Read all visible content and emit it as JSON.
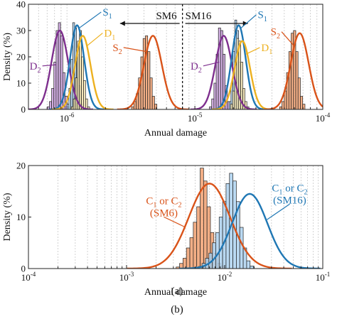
{
  "figure": {
    "panel_labels": [
      "(a)",
      "(b)"
    ]
  },
  "chart_data": [
    {
      "type": "bar",
      "panel": "(a)",
      "xlabel": "Annual damage",
      "ylabel": "Density (%)",
      "xscale": "log",
      "xlim": [
        5e-07,
        0.0001
      ],
      "ylim": [
        0,
        40
      ],
      "yticks": [
        0,
        10,
        20,
        30,
        40
      ],
      "xticks": [
        {
          "value": 1e-06,
          "base": "10",
          "exp": "-6"
        },
        {
          "value": 1e-05,
          "base": "10",
          "exp": "-5"
        },
        {
          "value": 0.0001,
          "base": "10",
          "exp": "-4"
        }
      ],
      "grid": "minor-vertical",
      "divider": {
        "x": 8e-06,
        "left_label": "SM6",
        "right_label": "SM16"
      },
      "colors": {
        "S1": "#1f77b4",
        "D1": "#edb120",
        "D2": "#7e2f8e",
        "S2": "#d95319",
        "S1_fill": "#aed2f0",
        "D1_fill": "#f5e4b0",
        "D2_fill": "#c9a0dc",
        "S2_fill": "#f0a071"
      },
      "series": [
        {
          "id": "D2",
          "label_main": "D",
          "label_sub": "2",
          "curve": {
            "mu": 8.8e-07,
            "sigma": 0.065,
            "peak": 30
          },
          "bins": {
            "start": 7e-07,
            "width": 0.0175,
            "values": [
              1,
              3,
              8,
              18,
              30,
              33,
              28,
              14,
              5,
              1
            ]
          }
        },
        {
          "id": "S1",
          "label_main": "S",
          "label_sub": "1",
          "curve": {
            "mu": 1.2e-06,
            "sigma": 0.055,
            "peak": 32
          },
          "bins": {
            "start": 1e-06,
            "width": 0.015,
            "values": [
              2,
              8,
              19,
              33,
              31,
              21,
              9,
              2
            ]
          }
        },
        {
          "id": "D1",
          "label_main": "D",
          "label_sub": "1",
          "curve": {
            "mu": 1.33e-06,
            "sigma": 0.06,
            "peak": 28
          },
          "bins": {
            "start": 1.08e-06,
            "width": 0.016,
            "values": [
              1,
              4,
              12,
              26,
              30,
              20,
              11,
              4,
              1
            ]
          }
        },
        {
          "id": "S2",
          "label_main": "S",
          "label_sub": "2",
          "curve": {
            "mu": 4.7e-06,
            "sigma": 0.07,
            "peak": 28
          },
          "bins": {
            "start": 3.2e-06,
            "width": 0.018,
            "values": [
              1,
              3,
              6,
              12,
              20,
              27,
              28,
              22,
              12,
              5,
              2
            ]
          }
        },
        {
          "id": "D2",
          "label_main": "D",
          "label_sub": "2",
          "curve": {
            "mu": 1.68e-05,
            "sigma": 0.065,
            "peak": 28
          },
          "bins": {
            "start": 1.3e-05,
            "width": 0.0175,
            "values": [
              1,
              4,
              10,
              21,
              31,
              30,
              21,
              9,
              3
            ]
          }
        },
        {
          "id": "S1",
          "label_main": "S",
          "label_sub": "1",
          "curve": {
            "mu": 2.2e-05,
            "sigma": 0.055,
            "peak": 32
          },
          "bins": {
            "start": 1.85e-05,
            "width": 0.015,
            "values": [
              3,
              10,
              22,
              34,
              30,
              18,
              7,
              2
            ]
          }
        },
        {
          "id": "D1",
          "label_main": "D",
          "label_sub": "1",
          "curve": {
            "mu": 2.35e-05,
            "sigma": 0.06,
            "peak": 26
          },
          "bins": {
            "start": 1.9e-05,
            "width": 0.016,
            "values": [
              2,
              7,
              17,
              27,
              26,
              18,
              8,
              3,
              1
            ]
          }
        },
        {
          "id": "S2",
          "label_main": "S",
          "label_sub": "2",
          "curve": {
            "mu": 6.6e-05,
            "sigma": 0.07,
            "peak": 29
          },
          "bins": {
            "start": 4.6e-05,
            "width": 0.018,
            "values": [
              1,
              3,
              7,
              14,
              22,
              29,
              30,
              22,
              12,
              5,
              2
            ]
          }
        }
      ],
      "labels": [
        {
          "for": 1,
          "text_main": "S",
          "text_sub": "1",
          "color": "#1f77b4",
          "anchor_x": 1.25e-06,
          "anchor_y": 31,
          "text_x": 1.9e-06,
          "text_y": 36.5
        },
        {
          "for": 2,
          "text_main": "D",
          "text_sub": "1",
          "color": "#edb120",
          "anchor_x": 1.42e-06,
          "anchor_y": 24,
          "text_x": 1.95e-06,
          "text_y": 28.5
        },
        {
          "for": 0,
          "text_main": "D",
          "text_sub": "2",
          "color": "#7e2f8e",
          "anchor_x": 8.2e-07,
          "anchor_y": 17,
          "text_x": 5.8e-07,
          "text_y": 16
        },
        {
          "for": 3,
          "text_main": "S",
          "text_sub": "2",
          "color": "#d95319",
          "anchor_x": 4.2e-06,
          "anchor_y": 22,
          "text_x": 2.5e-06,
          "text_y": 23
        },
        {
          "for": 5,
          "text_main": "S",
          "text_sub": "1",
          "color": "#1f77b4",
          "anchor_x": 2.3e-05,
          "anchor_y": 31,
          "text_x": 3.1e-05,
          "text_y": 35.5
        },
        {
          "for": 6,
          "text_main": "D",
          "text_sub": "1",
          "color": "#edb120",
          "anchor_x": 2.5e-05,
          "anchor_y": 21,
          "text_x": 3.3e-05,
          "text_y": 23
        },
        {
          "for": 4,
          "text_main": "D",
          "text_sub": "2",
          "color": "#7e2f8e",
          "anchor_x": 1.55e-05,
          "anchor_y": 18,
          "text_x": 1.05e-05,
          "text_y": 16
        },
        {
          "for": 7,
          "text_main": "S",
          "text_sub": "2",
          "color": "#d95319",
          "anchor_x": 6e-05,
          "anchor_y": 24,
          "text_x": 4.3e-05,
          "text_y": 29
        }
      ]
    },
    {
      "type": "bar",
      "panel": "(b)",
      "xlabel": "Annual damage",
      "ylabel": "Density (%)",
      "xscale": "log",
      "xlim": [
        0.0001,
        0.1
      ],
      "ylim": [
        0,
        20
      ],
      "yticks": [
        0,
        10,
        20
      ],
      "xticks": [
        {
          "value": 0.0001,
          "base": "10",
          "exp": "-4"
        },
        {
          "value": 0.001,
          "base": "10",
          "exp": "-3"
        },
        {
          "value": 0.01,
          "base": "10",
          "exp": "-2"
        },
        {
          "value": 0.1,
          "base": "10",
          "exp": "-1"
        }
      ],
      "grid": "minor-vertical",
      "colors": {
        "SM6": "#d95319",
        "SM16": "#1f77b4",
        "SM6_fill": "#f0a071",
        "SM16_fill": "#aed2f0"
      },
      "series": [
        {
          "id": "SM6",
          "curve": {
            "mu": 0.007,
            "sigma": 0.21,
            "peak": 16.5
          },
          "bins": {
            "start": 0.0032,
            "width": 0.035,
            "values": [
              0.3,
              1,
              2,
              4,
              6,
              9,
              12,
              19.5,
              17,
              12,
              7,
              3,
              1,
              0.5
            ]
          }
        },
        {
          "id": "SM16",
          "curve": {
            "mu": 0.018,
            "sigma": 0.18,
            "peak": 14.5
          },
          "bins": {
            "start": 0.005,
            "width": 0.035,
            "values": [
              0.2,
              0.4,
              1,
              2,
              3,
              5,
              7,
              10,
              13,
              16.5,
              18.5,
              17,
              13,
              8,
              4,
              1.5,
              0.5
            ]
          }
        }
      ],
      "labels": [
        {
          "for": 0,
          "line1_main": "C",
          "line1_sub": "1",
          "line1_mid": " or C",
          "line1_sub2": "2",
          "line2": "(SM6)",
          "color": "#d95319",
          "anchor_x": 0.004,
          "anchor_y": 8,
          "text_x": 0.0024,
          "text_y": 12.5
        },
        {
          "for": 1,
          "line1_main": "C",
          "line1_sub": "1",
          "line1_mid": " or C",
          "line1_sub2": "2",
          "line2": "(SM16)",
          "color": "#1f77b4",
          "anchor_x": 0.027,
          "anchor_y": 9.5,
          "text_x": 0.046,
          "text_y": 15
        }
      ]
    }
  ]
}
